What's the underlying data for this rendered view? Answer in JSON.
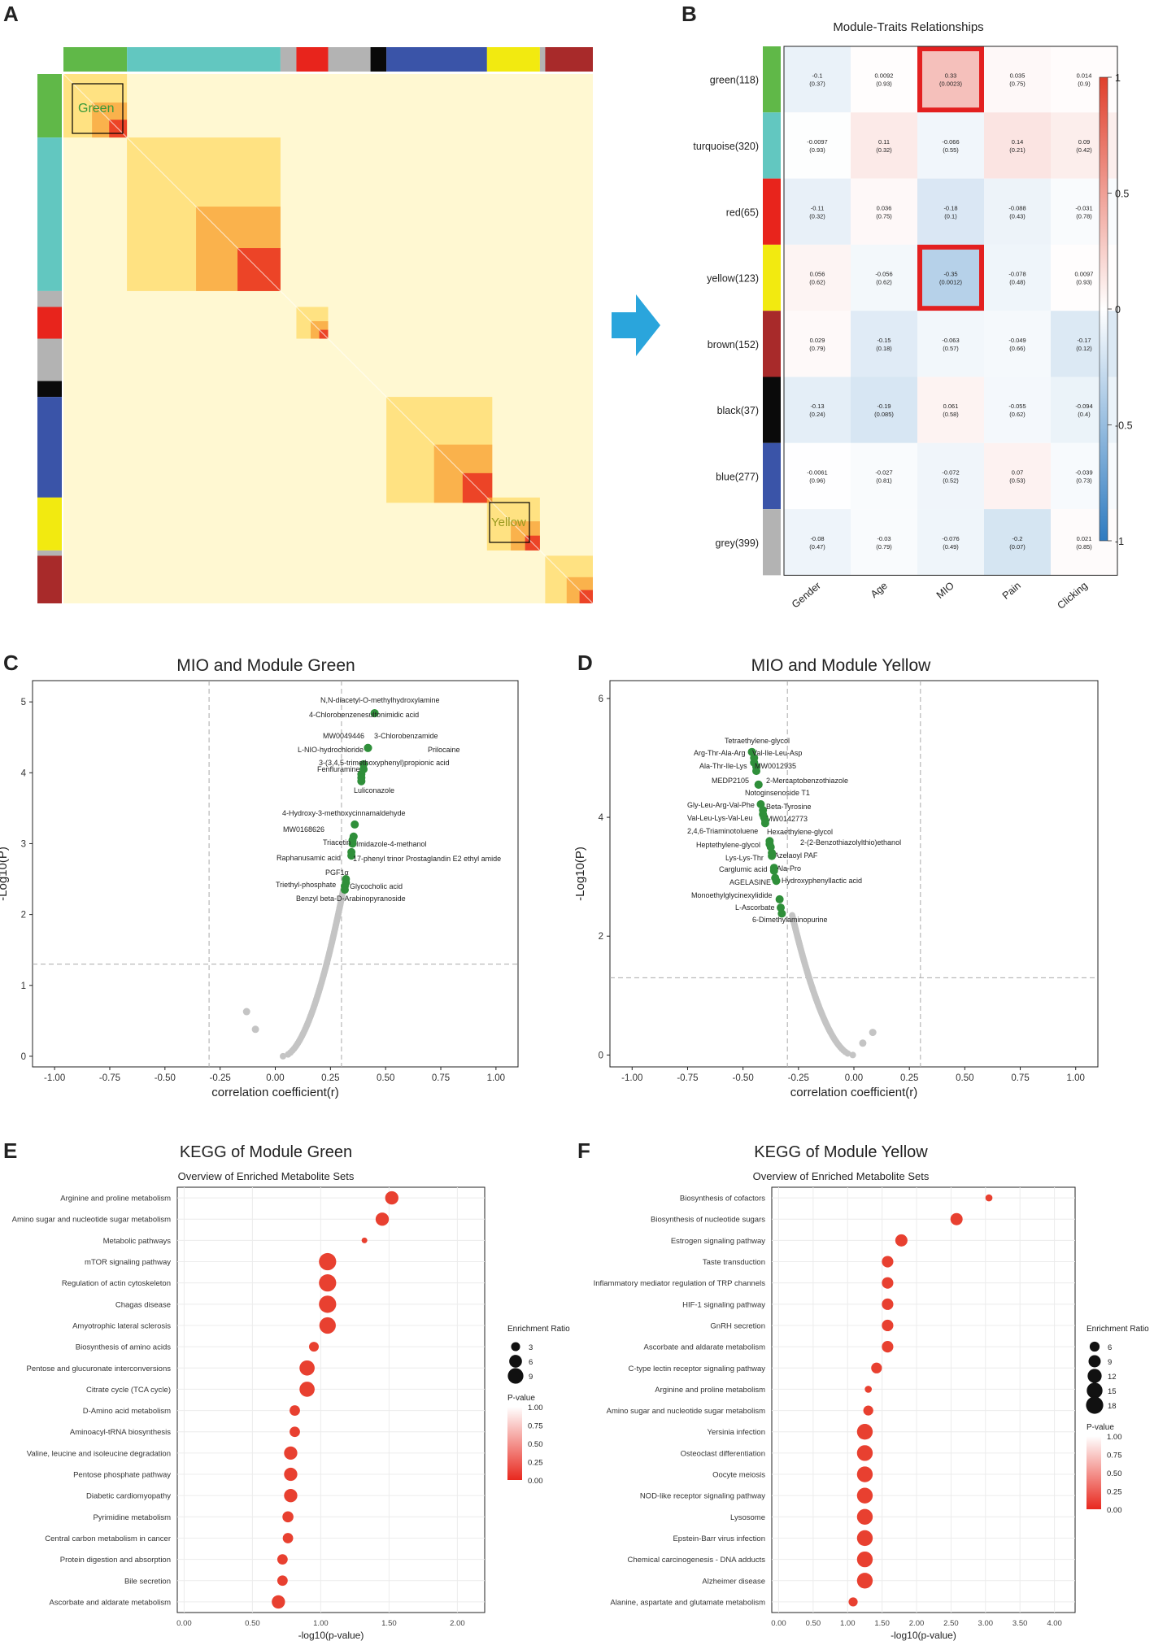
{
  "panels": {
    "A": {
      "letter": "A"
    },
    "B": {
      "letter": "B"
    },
    "C": {
      "letter": "C"
    },
    "D": {
      "letter": "D"
    },
    "E": {
      "letter": "E"
    },
    "F": {
      "letter": "F"
    }
  },
  "colors": {
    "green": "#60b848",
    "turquoise": "#62c7c0",
    "red": "#e8241c",
    "yellow": "#f2ea10",
    "brown": "#a82a2a",
    "black": "#0a0a0a",
    "blue": "#3a54a8",
    "grey": "#b3b3b3",
    "arrow": "#2aa5dc",
    "sig_point": "#2f8f3a",
    "ns_point": "#c4c4c4",
    "highlight": "#e32020",
    "neg": "#2f7bc0",
    "pos": "#e04030",
    "bubble": "#e84030"
  },
  "chart_data": [
    {
      "panel": "A",
      "type": "heatmap",
      "annotations": [
        "Green",
        "Yellow"
      ]
    },
    {
      "panel": "B",
      "type": "heatmap",
      "title": "Module-Traits Relationships",
      "columns": [
        "Gender",
        "Age",
        "MIO",
        "Pain",
        "Clicking"
      ],
      "rows": [
        {
          "label": "green(118)",
          "color": "#60b848",
          "cells": [
            {
              "r": -0.1,
              "t": "-0.1",
              "p": "(0.37)"
            },
            {
              "r": 0.0092,
              "t": "0.0092",
              "p": "(0.93)"
            },
            {
              "r": 0.33,
              "t": "0.33",
              "p": "(0.0023)",
              "hl": true
            },
            {
              "r": 0.035,
              "t": "0.035",
              "p": "(0.75)"
            },
            {
              "r": 0.014,
              "t": "0.014",
              "p": "(0.9)"
            }
          ]
        },
        {
          "label": "turquoise(320)",
          "color": "#62c7c0",
          "cells": [
            {
              "r": -0.0097,
              "t": "-0.0097",
              "p": "(0.93)"
            },
            {
              "r": 0.11,
              "t": "0.11",
              "p": "(0.32)"
            },
            {
              "r": -0.066,
              "t": "-0.066",
              "p": "(0.55)"
            },
            {
              "r": 0.14,
              "t": "0.14",
              "p": "(0.21)"
            },
            {
              "r": 0.09,
              "t": "0.09",
              "p": "(0.42)"
            }
          ]
        },
        {
          "label": "red(65)",
          "color": "#e8241c",
          "cells": [
            {
              "r": -0.11,
              "t": "-0.11",
              "p": "(0.32)"
            },
            {
              "r": 0.036,
              "t": "0.036",
              "p": "(0.75)"
            },
            {
              "r": -0.18,
              "t": "-0.18",
              "p": "(0.1)"
            },
            {
              "r": -0.088,
              "t": "-0.088",
              "p": "(0.43)"
            },
            {
              "r": -0.031,
              "t": "-0.031",
              "p": "(0.78)"
            }
          ]
        },
        {
          "label": "yellow(123)",
          "color": "#f2ea10",
          "cells": [
            {
              "r": 0.056,
              "t": "0.056",
              "p": "(0.62)"
            },
            {
              "r": -0.056,
              "t": "-0.056",
              "p": "(0.62)"
            },
            {
              "r": -0.35,
              "t": "-0.35",
              "p": "(0.0012)",
              "hl": true
            },
            {
              "r": -0.078,
              "t": "-0.078",
              "p": "(0.48)"
            },
            {
              "r": 0.0097,
              "t": "0.0097",
              "p": "(0.93)"
            }
          ]
        },
        {
          "label": "brown(152)",
          "color": "#a82a2a",
          "cells": [
            {
              "r": 0.029,
              "t": "0.029",
              "p": "(0.79)"
            },
            {
              "r": -0.15,
              "t": "-0.15",
              "p": "(0.18)"
            },
            {
              "r": -0.063,
              "t": "-0.063",
              "p": "(0.57)"
            },
            {
              "r": -0.049,
              "t": "-0.049",
              "p": "(0.66)"
            },
            {
              "r": -0.17,
              "t": "-0.17",
              "p": "(0.12)"
            }
          ]
        },
        {
          "label": "black(37)",
          "color": "#0a0a0a",
          "cells": [
            {
              "r": -0.13,
              "t": "-0.13",
              "p": "(0.24)"
            },
            {
              "r": -0.19,
              "t": "-0.19",
              "p": "(0.085)"
            },
            {
              "r": 0.061,
              "t": "0.061",
              "p": "(0.58)"
            },
            {
              "r": -0.055,
              "t": "-0.055",
              "p": "(0.62)"
            },
            {
              "r": -0.094,
              "t": "-0.094",
              "p": "(0.4)"
            }
          ]
        },
        {
          "label": "blue(277)",
          "color": "#3a54a8",
          "cells": [
            {
              "r": -0.0061,
              "t": "-0.0061",
              "p": "(0.96)"
            },
            {
              "r": -0.027,
              "t": "-0.027",
              "p": "(0.81)"
            },
            {
              "r": -0.072,
              "t": "-0.072",
              "p": "(0.52)"
            },
            {
              "r": 0.07,
              "t": "0.07",
              "p": "(0.53)"
            },
            {
              "r": -0.039,
              "t": "-0.039",
              "p": "(0.73)"
            }
          ]
        },
        {
          "label": "grey(399)",
          "color": "#b3b3b3",
          "cells": [
            {
              "r": -0.08,
              "t": "-0.08",
              "p": "(0.47)"
            },
            {
              "r": -0.03,
              "t": "-0.03",
              "p": "(0.79)"
            },
            {
              "r": -0.076,
              "t": "-0.076",
              "p": "(0.49)"
            },
            {
              "r": -0.2,
              "t": "-0.2",
              "p": "(0.07)"
            },
            {
              "r": 0.021,
              "t": "0.021",
              "p": "(0.85)"
            }
          ]
        }
      ],
      "colorbar": {
        "range": [
          -1,
          1
        ],
        "ticks": [
          "1",
          "0.5",
          "0",
          "-0.5",
          "-1"
        ]
      }
    },
    {
      "panel": "C",
      "type": "scatter",
      "title": "MIO and Module Green",
      "xlabel": "correlation coefficient(r)",
      "ylabel": "-Log10(P)",
      "xlim": [
        -1.1,
        1.1
      ],
      "ylim": [
        -0.15,
        5.3
      ],
      "xticks": [
        "-1.00",
        "-0.75",
        "-0.50",
        "-0.25",
        "0.00",
        "0.25",
        "0.50",
        "0.75",
        "1.00"
      ],
      "yticks": [
        "0",
        "1",
        "2",
        "3",
        "4",
        "5"
      ],
      "thresholds": {
        "x": [
          -0.3,
          0.3
        ],
        "y": 1.3
      },
      "curve": {
        "r0": 0.035
      },
      "outliers": [
        {
          "x": -0.13,
          "y": 0.63
        },
        {
          "x": -0.09,
          "y": 0.38
        }
      ],
      "significant": [
        {
          "label": "N,N-diacetyl-O-methylhydroxylamine",
          "x": 0.45,
          "y": 4.84
        },
        {
          "label": "4-Chlorobenzenesulfonimidic acid",
          "x": 0.45,
          "y": 4.84
        },
        {
          "label": "MW0049446",
          "x": 0.42,
          "y": 4.35
        },
        {
          "label": "3-Chlorobenzamide",
          "x": 0.42,
          "y": 4.35
        },
        {
          "label": "L-NIO-hydrochloride",
          "x": 0.4,
          "y": 4.12
        },
        {
          "label": "Prilocaine",
          "x": 0.4,
          "y": 4.05
        },
        {
          "label": "3-(3,4,5-trimethoxyphenyl)propionic acid",
          "x": 0.39,
          "y": 3.98
        },
        {
          "label": "Fenfluramine",
          "x": 0.39,
          "y": 3.93
        },
        {
          "label": "Luliconazole",
          "x": 0.39,
          "y": 3.88
        },
        {
          "label": "4-Hydroxy-3-methoxycinnamaldehyde",
          "x": 0.36,
          "y": 3.27
        },
        {
          "label": "MW0168626",
          "x": 0.355,
          "y": 3.1
        },
        {
          "label": "Imidazole-4-methanol",
          "x": 0.35,
          "y": 3.05
        },
        {
          "label": "Triacetin",
          "x": 0.35,
          "y": 3.0
        },
        {
          "label": "Raphanusamic acid",
          "x": 0.345,
          "y": 2.88
        },
        {
          "label": "17-phenyl trinor Prostaglandin E2 ethyl amide",
          "x": 0.345,
          "y": 2.83
        },
        {
          "label": "PGF1α",
          "x": 0.32,
          "y": 2.5
        },
        {
          "label": "Glycocholic acid",
          "x": 0.32,
          "y": 2.45
        },
        {
          "label": "Triethyl-phosphate",
          "x": 0.315,
          "y": 2.4
        },
        {
          "label": "Benzyl beta-D-Arabinopyranoside",
          "x": 0.315,
          "y": 2.35
        }
      ]
    },
    {
      "panel": "D",
      "type": "scatter",
      "title": "MIO and Module Yellow",
      "xlabel": "correlation coefficient(r)",
      "ylabel": "-Log10(P)",
      "xlim": [
        -1.1,
        1.1
      ],
      "ylim": [
        -0.2,
        6.3
      ],
      "xticks": [
        "-1.00",
        "-0.75",
        "-0.50",
        "-0.25",
        "0.00",
        "0.25",
        "0.50",
        "0.75",
        "1.00"
      ],
      "yticks": [
        "0",
        "2",
        "4",
        "6"
      ],
      "thresholds": {
        "x": [
          -0.3,
          0.3
        ],
        "y": 1.3
      },
      "curve": {
        "r0": -0.005
      },
      "outliers": [
        {
          "x": 0.04,
          "y": 0.2
        },
        {
          "x": 0.085,
          "y": 0.38
        }
      ],
      "significant": [
        {
          "label": "Tetraethylene-glycol",
          "x": -0.46,
          "y": 5.1
        },
        {
          "label": "Val-Ile-Leu-Asp",
          "x": -0.45,
          "y": 5.0
        },
        {
          "label": "Arg-Thr-Ala-Arg",
          "x": -0.45,
          "y": 4.92
        },
        {
          "label": "Ala-Thr-Ile-Lys",
          "x": -0.44,
          "y": 4.85
        },
        {
          "label": "MW0012935",
          "x": -0.44,
          "y": 4.78
        },
        {
          "label": "MEDP2105",
          "x": -0.43,
          "y": 4.55
        },
        {
          "label": "2-Mercaptobenzothiazole",
          "x": -0.43,
          "y": 4.55
        },
        {
          "label": "Notoginsenoside T1",
          "x": -0.42,
          "y": 4.22
        },
        {
          "label": "Beta-Tyrosine",
          "x": -0.41,
          "y": 4.12
        },
        {
          "label": "Gly-Leu-Arg-Val-Phe",
          "x": -0.41,
          "y": 4.05
        },
        {
          "label": "MW0142773",
          "x": -0.405,
          "y": 4.0
        },
        {
          "label": "Val-Leu-Lys-Val-Leu",
          "x": -0.4,
          "y": 3.95
        },
        {
          "label": "2,4,6-Triaminotoluene",
          "x": -0.4,
          "y": 3.9
        },
        {
          "label": "Hexaethylene-glycol",
          "x": -0.38,
          "y": 3.6
        },
        {
          "label": "Heptethylene-glycol",
          "x": -0.38,
          "y": 3.55
        },
        {
          "label": "2-(2-Benzothiazolylthio)ethanol",
          "x": -0.375,
          "y": 3.5
        },
        {
          "label": "Azelaoyl PAF",
          "x": -0.37,
          "y": 3.4
        },
        {
          "label": "Lys-Lys-Thr",
          "x": -0.37,
          "y": 3.35
        },
        {
          "label": "Ala-Pro",
          "x": -0.36,
          "y": 3.15
        },
        {
          "label": "Carglumic acid",
          "x": -0.36,
          "y": 3.1
        },
        {
          "label": "AGELASINE",
          "x": -0.355,
          "y": 2.98
        },
        {
          "label": "Hydroxyphenyllactic acid",
          "x": -0.35,
          "y": 2.93
        },
        {
          "label": "Monoethylglycinexylidide",
          "x": -0.335,
          "y": 2.62
        },
        {
          "label": "L-Ascorbate",
          "x": -0.33,
          "y": 2.48
        },
        {
          "label": "6-Dimethylaminopurine",
          "x": -0.325,
          "y": 2.38
        }
      ]
    },
    {
      "panel": "E",
      "type": "scatter",
      "title": "KEGG of Module Green",
      "subtitle": "Overview of Enriched Metabolite Sets",
      "xlabel": "-log10(p-value)",
      "xlim": [
        -0.05,
        2.2
      ],
      "xticks": [
        "0.00",
        "0.50",
        "1.00",
        "1.50",
        "2.00"
      ],
      "legend_size_title": "Enrichment Ratio",
      "legend_sizes": [
        3,
        6,
        9
      ],
      "legend_color_title": "P-value",
      "legend_color_ticks": [
        "1.00",
        "0.75",
        "0.50",
        "0.25",
        "0.00"
      ],
      "rows": [
        {
          "label": "Arginine and proline metabolism",
          "x": 1.52,
          "ratio": 6.5
        },
        {
          "label": "Amino sugar and nucleotide sugar metabolism",
          "x": 1.45,
          "ratio": 6.5
        },
        {
          "label": "Metabolic pathways",
          "x": 1.32,
          "ratio": 1.2
        },
        {
          "label": "mTOR signaling pathway",
          "x": 1.05,
          "ratio": 11
        },
        {
          "label": "Regulation of actin cytoskeleton",
          "x": 1.05,
          "ratio": 11
        },
        {
          "label": "Chagas disease",
          "x": 1.05,
          "ratio": 11
        },
        {
          "label": "Amyotrophic lateral sclerosis",
          "x": 1.05,
          "ratio": 10
        },
        {
          "label": "Biosynthesis of amino acids",
          "x": 0.95,
          "ratio": 3.5
        },
        {
          "label": "Pentose and glucuronate interconversions",
          "x": 0.9,
          "ratio": 8.5
        },
        {
          "label": "Citrate cycle (TCA cycle)",
          "x": 0.9,
          "ratio": 8.5
        },
        {
          "label": "D-Amino acid metabolism",
          "x": 0.81,
          "ratio": 4
        },
        {
          "label": "Aminoacyl-tRNA biosynthesis",
          "x": 0.81,
          "ratio": 4
        },
        {
          "label": "Valine, leucine and isoleucine degradation",
          "x": 0.78,
          "ratio": 6.5
        },
        {
          "label": "Pentose phosphate pathway",
          "x": 0.78,
          "ratio": 6.5
        },
        {
          "label": "Diabetic cardiomyopathy",
          "x": 0.78,
          "ratio": 6.5
        },
        {
          "label": "Pyrimidine metabolism",
          "x": 0.76,
          "ratio": 4.5
        },
        {
          "label": "Central carbon metabolism in cancer",
          "x": 0.76,
          "ratio": 4
        },
        {
          "label": "Protein digestion and absorption",
          "x": 0.72,
          "ratio": 4
        },
        {
          "label": "Bile secretion",
          "x": 0.72,
          "ratio": 4
        },
        {
          "label": "Ascorbate and aldarate metabolism",
          "x": 0.69,
          "ratio": 6.5
        }
      ]
    },
    {
      "panel": "F",
      "type": "scatter",
      "title": "KEGG of Module Yellow",
      "subtitle": "Overview of Enriched Metabolite Sets",
      "xlabel": "-log10(p-value)",
      "xlim": [
        -0.1,
        4.3
      ],
      "xticks": [
        "0.00",
        "0.50",
        "1.00",
        "1.50",
        "2.00",
        "2.50",
        "3.00",
        "3.50",
        "4.00"
      ],
      "legend_size_title": "Enrichment Ratio",
      "legend_sizes": [
        6,
        9,
        12,
        15,
        18
      ],
      "legend_color_title": "P-value",
      "legend_color_ticks": [
        "1.00",
        "0.75",
        "0.50",
        "0.25",
        "0.00"
      ],
      "rows": [
        {
          "label": "Biosynthesis of cofactors",
          "x": 3.05,
          "ratio": 3
        },
        {
          "label": "Biosynthesis of nucleotide sugars",
          "x": 2.58,
          "ratio": 9
        },
        {
          "label": "Estrogen signaling pathway",
          "x": 1.78,
          "ratio": 9
        },
        {
          "label": "Taste transduction",
          "x": 1.58,
          "ratio": 8
        },
        {
          "label": "Inflammatory mediator regulation of TRP channels",
          "x": 1.58,
          "ratio": 8
        },
        {
          "label": "HIF-1 signaling pathway",
          "x": 1.58,
          "ratio": 8
        },
        {
          "label": "GnRH secretion",
          "x": 1.58,
          "ratio": 8
        },
        {
          "label": "Ascorbate and aldarate metabolism",
          "x": 1.58,
          "ratio": 8
        },
        {
          "label": "C-type lectin receptor signaling pathway",
          "x": 1.42,
          "ratio": 7
        },
        {
          "label": "Arginine and proline metabolism",
          "x": 1.3,
          "ratio": 3
        },
        {
          "label": "Amino sugar and nucleotide sugar metabolism",
          "x": 1.3,
          "ratio": 6
        },
        {
          "label": "Yersinia infection",
          "x": 1.25,
          "ratio": 15
        },
        {
          "label": "Osteoclast differentiation",
          "x": 1.25,
          "ratio": 15
        },
        {
          "label": "Oocyte meiosis",
          "x": 1.25,
          "ratio": 15
        },
        {
          "label": "NOD-like receptor signaling pathway",
          "x": 1.25,
          "ratio": 15
        },
        {
          "label": "Lysosome",
          "x": 1.25,
          "ratio": 15
        },
        {
          "label": "Epstein-Barr virus infection",
          "x": 1.25,
          "ratio": 15
        },
        {
          "label": "Chemical carcinogenesis - DNA adducts",
          "x": 1.25,
          "ratio": 15
        },
        {
          "label": "Alzheimer disease",
          "x": 1.25,
          "ratio": 15
        },
        {
          "label": "Alanine, aspartate and glutamate metabolism",
          "x": 1.08,
          "ratio": 5
        }
      ]
    }
  ]
}
